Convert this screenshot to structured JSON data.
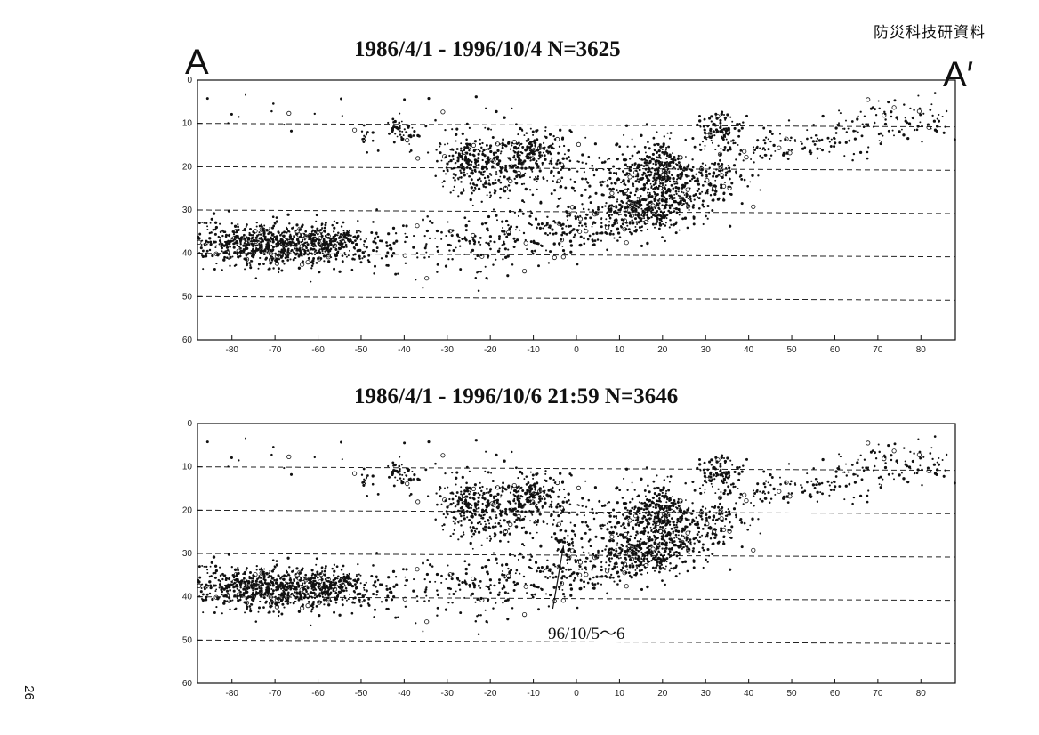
{
  "header": {
    "label": "防災科技研資料"
  },
  "page_number": "26",
  "section_labels": {
    "start": "A",
    "end": "A′"
  },
  "chart_data": [
    {
      "type": "scatter",
      "title": "1986/4/1 - 1996/10/4    N=3625",
      "xlabel": "",
      "ylabel": "",
      "xlim": [
        -88,
        88
      ],
      "ylim": [
        0,
        60
      ],
      "y_inverted": true,
      "x_ticks": [
        -80,
        -70,
        -60,
        -50,
        -40,
        -30,
        -20,
        -10,
        0,
        10,
        20,
        30,
        40,
        50,
        60,
        70,
        80
      ],
      "y_ticks": [
        0,
        10,
        20,
        30,
        40,
        50,
        60
      ],
      "dashed_gridlines": [
        10,
        20,
        30,
        40,
        50
      ],
      "clusters": [
        {
          "x": -70,
          "y": 38,
          "sx": 8,
          "sy": 2.6,
          "n": 640
        },
        {
          "x": -56,
          "y": 38,
          "sx": 4,
          "sy": 2.2,
          "n": 160
        },
        {
          "x": -47,
          "y": 40,
          "sx": 4,
          "sy": 3,
          "n": 40
        },
        {
          "x": -85,
          "y": 37,
          "sx": 3,
          "sy": 3,
          "n": 50
        },
        {
          "x": -41,
          "y": 12,
          "sx": 1.5,
          "sy": 1.5,
          "n": 40
        },
        {
          "x": -49,
          "y": 13,
          "sx": 1,
          "sy": 2,
          "n": 15
        },
        {
          "x": -25,
          "y": 19,
          "sx": 3,
          "sy": 2.5,
          "n": 140
        },
        {
          "x": -20,
          "y": 21,
          "sx": 5,
          "sy": 4,
          "n": 160
        },
        {
          "x": -11,
          "y": 17,
          "sx": 3.5,
          "sy": 3,
          "n": 200
        },
        {
          "x": -3,
          "y": 20,
          "sx": 5,
          "sy": 4,
          "n": 60
        },
        {
          "x": 19,
          "y": 20,
          "sx": 3,
          "sy": 3,
          "n": 240
        },
        {
          "x": 13,
          "y": 24,
          "sx": 4,
          "sy": 3,
          "n": 120
        },
        {
          "x": 17,
          "y": 30,
          "sx": 5,
          "sy": 2.5,
          "n": 280
        },
        {
          "x": 26,
          "y": 26,
          "sx": 5,
          "sy": 3,
          "n": 160
        },
        {
          "x": 34,
          "y": 21,
          "sx": 4,
          "sy": 3,
          "n": 100
        },
        {
          "x": 33,
          "y": 11,
          "sx": 3,
          "sy": 2,
          "n": 90
        },
        {
          "x": 45,
          "y": 15,
          "sx": 5,
          "sy": 2,
          "n": 50
        },
        {
          "x": 58,
          "y": 14,
          "sx": 5,
          "sy": 2.5,
          "n": 40
        },
        {
          "x": 68,
          "y": 10,
          "sx": 5,
          "sy": 2.5,
          "n": 50
        },
        {
          "x": 80,
          "y": 9,
          "sx": 5,
          "sy": 2.5,
          "n": 60
        },
        {
          "x": -20,
          "y": 37,
          "sx": 10,
          "sy": 3,
          "n": 140
        },
        {
          "x": 0,
          "y": 34,
          "sx": 6,
          "sy": 3,
          "n": 120
        },
        {
          "x": 8,
          "y": 33,
          "sx": 4,
          "sy": 3,
          "n": 60
        },
        {
          "x": -30,
          "y": 40,
          "sx": 8,
          "sy": 4,
          "n": 50
        },
        {
          "x": 5,
          "y": 20,
          "sx": 12,
          "sy": 6,
          "n": 60
        },
        {
          "x": -30,
          "y": 12,
          "sx": 8,
          "sy": 5,
          "n": 40
        },
        {
          "x": -70,
          "y": 8,
          "sx": 12,
          "sy": 4,
          "n": 15
        }
      ],
      "annotation": ""
    },
    {
      "type": "scatter",
      "title": "1986/4/1 - 1996/10/6 21:59 N=3646",
      "xlabel": "",
      "ylabel": "",
      "xlim": [
        -88,
        88
      ],
      "ylim": [
        0,
        60
      ],
      "y_inverted": true,
      "x_ticks": [
        -80,
        -70,
        -60,
        -50,
        -40,
        -30,
        -20,
        -10,
        0,
        10,
        20,
        30,
        40,
        50,
        60,
        70,
        80
      ],
      "y_ticks": [
        0,
        10,
        20,
        30,
        40,
        50,
        60
      ],
      "dashed_gridlines": [
        10,
        20,
        30,
        40,
        50
      ],
      "clusters": [
        {
          "x": -70,
          "y": 38,
          "sx": 8,
          "sy": 2.6,
          "n": 640
        },
        {
          "x": -56,
          "y": 38,
          "sx": 4,
          "sy": 2.2,
          "n": 160
        },
        {
          "x": -47,
          "y": 40,
          "sx": 4,
          "sy": 3,
          "n": 40
        },
        {
          "x": -85,
          "y": 37,
          "sx": 3,
          "sy": 3,
          "n": 50
        },
        {
          "x": -41,
          "y": 12,
          "sx": 1.5,
          "sy": 1.5,
          "n": 40
        },
        {
          "x": -49,
          "y": 13,
          "sx": 1,
          "sy": 2,
          "n": 15
        },
        {
          "x": -25,
          "y": 19,
          "sx": 3,
          "sy": 2.5,
          "n": 140
        },
        {
          "x": -20,
          "y": 21,
          "sx": 5,
          "sy": 4,
          "n": 160
        },
        {
          "x": -11,
          "y": 17,
          "sx": 3.5,
          "sy": 3,
          "n": 200
        },
        {
          "x": -3,
          "y": 20,
          "sx": 5,
          "sy": 4,
          "n": 60
        },
        {
          "x": 19,
          "y": 20,
          "sx": 3,
          "sy": 3,
          "n": 240
        },
        {
          "x": 13,
          "y": 24,
          "sx": 4,
          "sy": 3,
          "n": 120
        },
        {
          "x": 17,
          "y": 30,
          "sx": 5,
          "sy": 2.5,
          "n": 280
        },
        {
          "x": 26,
          "y": 26,
          "sx": 5,
          "sy": 3,
          "n": 160
        },
        {
          "x": 34,
          "y": 21,
          "sx": 4,
          "sy": 3,
          "n": 100
        },
        {
          "x": 33,
          "y": 11,
          "sx": 3,
          "sy": 2,
          "n": 90
        },
        {
          "x": 45,
          "y": 15,
          "sx": 5,
          "sy": 2,
          "n": 50
        },
        {
          "x": 58,
          "y": 14,
          "sx": 5,
          "sy": 2.5,
          "n": 40
        },
        {
          "x": 68,
          "y": 10,
          "sx": 5,
          "sy": 2.5,
          "n": 50
        },
        {
          "x": 80,
          "y": 9,
          "sx": 5,
          "sy": 2.5,
          "n": 60
        },
        {
          "x": -20,
          "y": 37,
          "sx": 10,
          "sy": 3,
          "n": 140
        },
        {
          "x": 0,
          "y": 34,
          "sx": 6,
          "sy": 3,
          "n": 120
        },
        {
          "x": 8,
          "y": 33,
          "sx": 4,
          "sy": 3,
          "n": 60
        },
        {
          "x": -30,
          "y": 40,
          "sx": 8,
          "sy": 4,
          "n": 50
        },
        {
          "x": 5,
          "y": 20,
          "sx": 12,
          "sy": 6,
          "n": 60
        },
        {
          "x": -30,
          "y": 12,
          "sx": 8,
          "sy": 5,
          "n": 40
        },
        {
          "x": -70,
          "y": 8,
          "sx": 12,
          "sy": 4,
          "n": 15
        },
        {
          "x": -2,
          "y": 27,
          "sx": 1,
          "sy": 0.8,
          "n": 21
        }
      ],
      "annotation": "96/10/5～6",
      "annotation_target": {
        "x": -3,
        "y": 27
      }
    }
  ]
}
